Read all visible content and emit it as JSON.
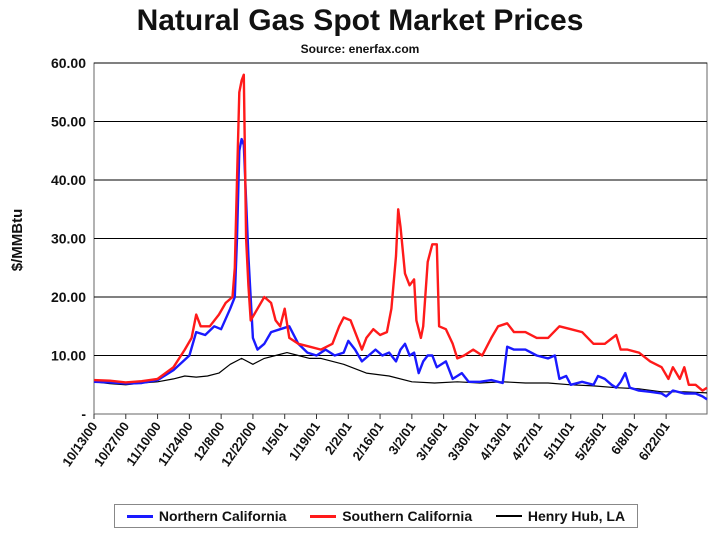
{
  "chart_data": {
    "type": "line",
    "title": "Natural Gas Spot Market Prices",
    "subtitle": "Source: enerfax.com",
    "xlabel": "",
    "ylabel": "$/MMBtu",
    "ylim": [
      0,
      60
    ],
    "yticks": [
      "-",
      "10.00",
      "20.00",
      "30.00",
      "40.00",
      "50.00",
      "60.00"
    ],
    "x_tick_labels": [
      "10/13/00",
      "10/27/00",
      "11/10/00",
      "11/24/00",
      "12/8/00",
      "12/22/00",
      "1/5/01",
      "1/19/01",
      "2/2/01",
      "2/16/01",
      "3/2/01",
      "3/16/01",
      "3/30/01",
      "4/13/01",
      "4/27/01",
      "5/11/01",
      "5/25/01",
      "6/8/01",
      "6/22/01"
    ],
    "x_range_days": [
      0,
      270
    ],
    "grid": "horizontal",
    "series": [
      {
        "name": "Northern California",
        "color": "#1a1aff",
        "points": [
          [
            0,
            5.5
          ],
          [
            7,
            5.4
          ],
          [
            14,
            5.2
          ],
          [
            21,
            5.3
          ],
          [
            28,
            5.8
          ],
          [
            35,
            7.5
          ],
          [
            42,
            10
          ],
          [
            45,
            14
          ],
          [
            49,
            13.5
          ],
          [
            53,
            15
          ],
          [
            56,
            14.5
          ],
          [
            60,
            18
          ],
          [
            62,
            20
          ],
          [
            63,
            30
          ],
          [
            64,
            45
          ],
          [
            65,
            47
          ],
          [
            66,
            46
          ],
          [
            68,
            27
          ],
          [
            70,
            13
          ],
          [
            72,
            11
          ],
          [
            75,
            12
          ],
          [
            78,
            14
          ],
          [
            82,
            14.5
          ],
          [
            86,
            15
          ],
          [
            90,
            12
          ],
          [
            94,
            10.5
          ],
          [
            98,
            10
          ],
          [
            102,
            11
          ],
          [
            106,
            10
          ],
          [
            110,
            10.5
          ],
          [
            112,
            12.5
          ],
          [
            115,
            11
          ],
          [
            118,
            9
          ],
          [
            121,
            10
          ],
          [
            124,
            11
          ],
          [
            127,
            10
          ],
          [
            130,
            10.5
          ],
          [
            133,
            9
          ],
          [
            135,
            11
          ],
          [
            137,
            12
          ],
          [
            139,
            10
          ],
          [
            141,
            10.5
          ],
          [
            143,
            7
          ],
          [
            145,
            9
          ],
          [
            147,
            10
          ],
          [
            149,
            10
          ],
          [
            151,
            8
          ],
          [
            155,
            9
          ],
          [
            158,
            6
          ],
          [
            160,
            6.5
          ],
          [
            162,
            7
          ],
          [
            165,
            5.5
          ],
          [
            170,
            5.5
          ],
          [
            175,
            5.8
          ],
          [
            178,
            5.5
          ],
          [
            180,
            5.3
          ],
          [
            182,
            11.5
          ],
          [
            185,
            11
          ],
          [
            190,
            11
          ],
          [
            195,
            10
          ],
          [
            200,
            9.5
          ],
          [
            203,
            10
          ],
          [
            205,
            6
          ],
          [
            208,
            6.5
          ],
          [
            210,
            5
          ],
          [
            215,
            5.5
          ],
          [
            220,
            5
          ],
          [
            222,
            6.5
          ],
          [
            225,
            6
          ],
          [
            228,
            5
          ],
          [
            230,
            4.5
          ],
          [
            232,
            5.5
          ],
          [
            234,
            7
          ],
          [
            236,
            4.5
          ],
          [
            240,
            4
          ],
          [
            245,
            3.8
          ],
          [
            250,
            3.5
          ],
          [
            252,
            3
          ],
          [
            255,
            4
          ],
          [
            260,
            3.5
          ],
          [
            265,
            3.5
          ],
          [
            268,
            3
          ],
          [
            270,
            2.5
          ]
        ]
      },
      {
        "name": "Southern California",
        "color": "#ff1a1a",
        "points": [
          [
            0,
            5.8
          ],
          [
            7,
            5.7
          ],
          [
            14,
            5.4
          ],
          [
            21,
            5.6
          ],
          [
            28,
            6
          ],
          [
            35,
            8
          ],
          [
            40,
            11
          ],
          [
            43,
            13
          ],
          [
            45,
            17
          ],
          [
            47,
            15
          ],
          [
            51,
            15
          ],
          [
            55,
            17
          ],
          [
            58,
            19
          ],
          [
            61,
            20
          ],
          [
            62,
            25
          ],
          [
            63,
            40
          ],
          [
            64,
            55
          ],
          [
            65,
            57
          ],
          [
            66,
            58
          ],
          [
            67,
            30
          ],
          [
            68,
            22
          ],
          [
            69,
            16
          ],
          [
            72,
            18
          ],
          [
            75,
            20
          ],
          [
            78,
            19
          ],
          [
            80,
            16
          ],
          [
            82,
            15
          ],
          [
            84,
            18
          ],
          [
            86,
            13
          ],
          [
            90,
            12
          ],
          [
            95,
            11.5
          ],
          [
            100,
            11
          ],
          [
            105,
            12
          ],
          [
            108,
            15
          ],
          [
            110,
            16.5
          ],
          [
            113,
            16
          ],
          [
            115,
            14
          ],
          [
            118,
            11
          ],
          [
            120,
            13
          ],
          [
            123,
            14.5
          ],
          [
            126,
            13.5
          ],
          [
            129,
            14
          ],
          [
            131,
            18
          ],
          [
            133,
            27
          ],
          [
            134,
            35
          ],
          [
            135,
            32
          ],
          [
            137,
            24
          ],
          [
            139,
            22
          ],
          [
            141,
            23
          ],
          [
            142,
            16
          ],
          [
            144,
            13
          ],
          [
            145,
            15
          ],
          [
            147,
            26
          ],
          [
            149,
            29
          ],
          [
            151,
            29
          ],
          [
            152,
            15
          ],
          [
            155,
            14.5
          ],
          [
            158,
            12
          ],
          [
            160,
            9.5
          ],
          [
            163,
            10
          ],
          [
            167,
            11
          ],
          [
            171,
            10
          ],
          [
            175,
            13
          ],
          [
            178,
            15
          ],
          [
            182,
            15.5
          ],
          [
            185,
            14
          ],
          [
            190,
            14
          ],
          [
            195,
            13
          ],
          [
            200,
            13
          ],
          [
            205,
            15
          ],
          [
            210,
            14.5
          ],
          [
            215,
            14
          ],
          [
            220,
            12
          ],
          [
            225,
            12
          ],
          [
            230,
            13.5
          ],
          [
            232,
            11
          ],
          [
            235,
            11
          ],
          [
            240,
            10.5
          ],
          [
            245,
            9
          ],
          [
            250,
            8
          ],
          [
            253,
            6
          ],
          [
            255,
            8
          ],
          [
            258,
            6
          ],
          [
            260,
            8
          ],
          [
            262,
            5
          ],
          [
            265,
            5
          ],
          [
            268,
            4
          ],
          [
            270,
            4.5
          ]
        ]
      },
      {
        "name": "Henry Hub, LA",
        "color": "#000000",
        "points": [
          [
            0,
            5.5
          ],
          [
            7,
            5.2
          ],
          [
            14,
            5.0
          ],
          [
            21,
            5.3
          ],
          [
            28,
            5.5
          ],
          [
            35,
            6
          ],
          [
            40,
            6.5
          ],
          [
            45,
            6.3
          ],
          [
            50,
            6.5
          ],
          [
            55,
            7
          ],
          [
            60,
            8.5
          ],
          [
            65,
            9.5
          ],
          [
            70,
            8.5
          ],
          [
            75,
            9.5
          ],
          [
            80,
            10
          ],
          [
            85,
            10.5
          ],
          [
            90,
            10
          ],
          [
            95,
            9.5
          ],
          [
            100,
            9.5
          ],
          [
            110,
            8.5
          ],
          [
            120,
            7
          ],
          [
            130,
            6.5
          ],
          [
            140,
            5.5
          ],
          [
            150,
            5.3
          ],
          [
            160,
            5.5
          ],
          [
            170,
            5.3
          ],
          [
            180,
            5.5
          ],
          [
            190,
            5.3
          ],
          [
            200,
            5.3
          ],
          [
            210,
            5
          ],
          [
            220,
            4.8
          ],
          [
            230,
            4.5
          ],
          [
            240,
            4.3
          ],
          [
            250,
            3.8
          ],
          [
            260,
            3.8
          ],
          [
            270,
            3.6
          ]
        ]
      }
    ],
    "legend_position": "bottom"
  }
}
